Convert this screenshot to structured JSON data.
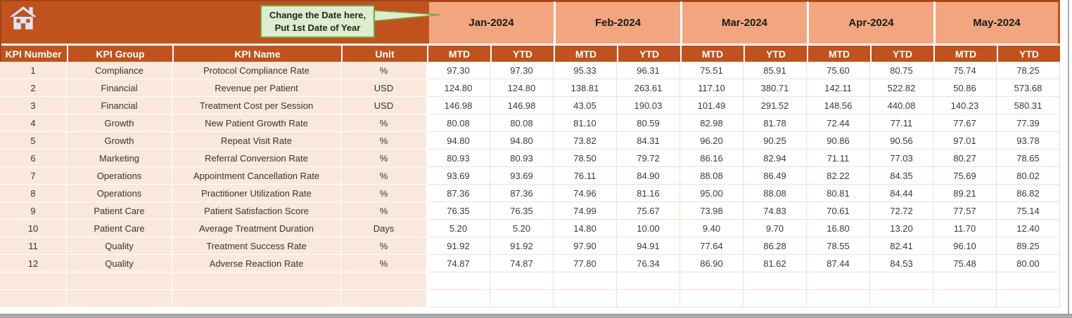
{
  "header": {
    "callout": {
      "line1": "Change the Date here,",
      "line2": "Put 1st Date of Year"
    },
    "months": [
      "Jan-2024",
      "Feb-2024",
      "Mar-2024",
      "Apr-2024",
      "May-2024"
    ],
    "sub_columns": [
      "MTD",
      "YTD"
    ],
    "home_icon": "home-icon"
  },
  "table": {
    "columns": [
      "KPI Number",
      "KPI Group",
      "KPI Name",
      "Unit"
    ],
    "rows": [
      {
        "number": "1",
        "group": "Compliance",
        "name": "Protocol Compliance Rate",
        "unit": "%",
        "values": [
          "97.30",
          "97.30",
          "95.33",
          "96.31",
          "75.51",
          "85.91",
          "75.60",
          "80.75",
          "75.74",
          "78.25"
        ]
      },
      {
        "number": "2",
        "group": "Financial",
        "name": "Revenue per Patient",
        "unit": "USD",
        "values": [
          "124.80",
          "124.80",
          "138.81",
          "263.61",
          "117.10",
          "380.71",
          "142.11",
          "522.82",
          "50.86",
          "573.68"
        ]
      },
      {
        "number": "3",
        "group": "Financial",
        "name": "Treatment Cost per Session",
        "unit": "USD",
        "values": [
          "146.98",
          "146.98",
          "43.05",
          "190.03",
          "101.49",
          "291.52",
          "148.56",
          "440.08",
          "140.23",
          "580.31"
        ]
      },
      {
        "number": "4",
        "group": "Growth",
        "name": "New Patient Growth Rate",
        "unit": "%",
        "values": [
          "80.08",
          "80.08",
          "81.10",
          "80.59",
          "82.98",
          "81.78",
          "72.44",
          "77.11",
          "77.67",
          "77.39"
        ]
      },
      {
        "number": "5",
        "group": "Growth",
        "name": "Repeat Visit Rate",
        "unit": "%",
        "values": [
          "94.80",
          "94.80",
          "73.82",
          "84.31",
          "96.20",
          "90.25",
          "90.86",
          "90.56",
          "97.01",
          "93.78"
        ]
      },
      {
        "number": "6",
        "group": "Marketing",
        "name": "Referral Conversion Rate",
        "unit": "%",
        "values": [
          "80.93",
          "80.93",
          "78.50",
          "79.72",
          "86.16",
          "82.94",
          "71.11",
          "77.03",
          "80.27",
          "78.65"
        ]
      },
      {
        "number": "7",
        "group": "Operations",
        "name": "Appointment Cancellation Rate",
        "unit": "%",
        "values": [
          "93.69",
          "93.69",
          "76.11",
          "84.90",
          "88.08",
          "86.49",
          "82.22",
          "84.35",
          "75.69",
          "80.02"
        ]
      },
      {
        "number": "8",
        "group": "Operations",
        "name": "Practitioner Utilization Rate",
        "unit": "%",
        "values": [
          "87.36",
          "87.36",
          "74.96",
          "81.16",
          "95.00",
          "88.08",
          "80.81",
          "84.44",
          "89.21",
          "86.82"
        ]
      },
      {
        "number": "9",
        "group": "Patient Care",
        "name": "Patient Satisfaction Score",
        "unit": "%",
        "values": [
          "76.35",
          "76.35",
          "74.99",
          "75.67",
          "73.98",
          "74.83",
          "70.61",
          "72.72",
          "77.57",
          "75.14"
        ]
      },
      {
        "number": "10",
        "group": "Patient Care",
        "name": "Average Treatment Duration",
        "unit": "Days",
        "values": [
          "5.20",
          "5.20",
          "14.80",
          "10.00",
          "9.40",
          "9.70",
          "16.80",
          "13.20",
          "11.70",
          "12.40"
        ]
      },
      {
        "number": "11",
        "group": "Quality",
        "name": "Treatment Success Rate",
        "unit": "%",
        "values": [
          "91.92",
          "91.92",
          "97.90",
          "94.91",
          "77.64",
          "86.28",
          "78.55",
          "82.41",
          "96.10",
          "89.25"
        ]
      },
      {
        "number": "12",
        "group": "Quality",
        "name": "Adverse Reaction Rate",
        "unit": "%",
        "values": [
          "74.87",
          "74.87",
          "77.80",
          "76.34",
          "86.90",
          "81.62",
          "87.44",
          "84.53",
          "75.48",
          "80.00"
        ]
      }
    ],
    "empty_rows": 2
  },
  "colors": {
    "header_rust": "#C0521E",
    "month_salmon": "#F2A67F",
    "row_peach": "#FBE8DC",
    "callout_bg": "#DCEECD",
    "callout_border": "#76A240"
  }
}
